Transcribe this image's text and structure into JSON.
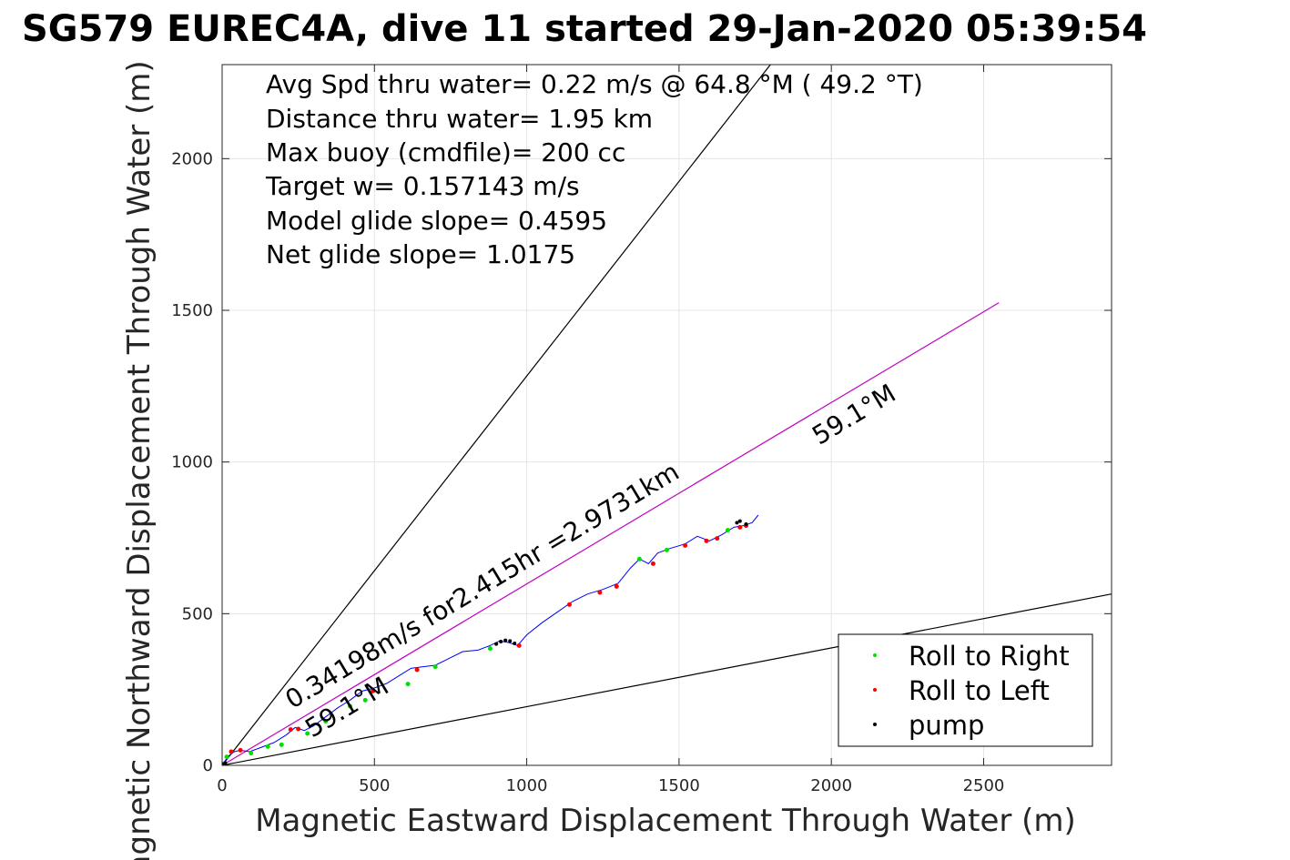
{
  "chart_data": {
    "type": "line",
    "title": "SG579 EUREC4A, dive 11 started 29-Jan-2020 05:39:54",
    "xlabel": "Magnetic Eastward Displacement Through Water (m)",
    "ylabel": "Magnetic Northward Displacement Through Water (m)",
    "xlim": [
      0,
      2920
    ],
    "ylim": [
      0,
      2310
    ],
    "x_ticks": [
      0,
      500,
      1000,
      1500,
      2000,
      2500
    ],
    "y_ticks": [
      0,
      500,
      1000,
      1500,
      2000
    ],
    "grid": true,
    "legend_position": "bottom-right",
    "stats": [
      "Avg Spd thru water=  0.22 m/s @  64.8 °M ( 49.2 °T)",
      "Distance thru water=  1.95 km",
      "Max buoy (cmdfile)= 200 cc",
      "Target w= 0.157143 m/s",
      "Model glide slope= 0.4595",
      "Net glide slope= 1.0175"
    ],
    "annotations": [
      {
        "text": "0.34198m/s for2.415hr =2.9731km",
        "x": 230,
        "y": 185,
        "angle_deg": 30.9
      },
      {
        "text": "59.1°M",
        "x": 295,
        "y": 90,
        "angle_deg": 30.9
      },
      {
        "text": "59.1°M",
        "x": 1960,
        "y": 1055,
        "angle_deg": 30.9
      }
    ],
    "reference_lines": [
      {
        "name": "upper-bound",
        "color": "#000000",
        "x": [
          0,
          1800
        ],
        "y": [
          0,
          2310
        ]
      },
      {
        "name": "lower-bound",
        "color": "#000000",
        "x": [
          0,
          2920
        ],
        "y": [
          0,
          565
        ]
      },
      {
        "name": "course-line",
        "color": "#c000c0",
        "x": [
          0,
          2550
        ],
        "y": [
          0,
          1525
        ]
      }
    ],
    "series": [
      {
        "name": "",
        "color": "#0000ff",
        "x": [
          0,
          20,
          40,
          60,
          90,
          130,
          170,
          210,
          240,
          270,
          300,
          340,
          380,
          420,
          460,
          500,
          540,
          580,
          620,
          660,
          700,
          740,
          790,
          840,
          880,
          910,
          940,
          970,
          1000,
          1050,
          1100,
          1150,
          1200,
          1250,
          1300,
          1340,
          1370,
          1400,
          1430,
          1470,
          1520,
          1560,
          1600,
          1640,
          1680,
          1710,
          1740,
          1760
        ],
        "y": [
          0,
          30,
          45,
          50,
          45,
          60,
          75,
          100,
          125,
          115,
          130,
          160,
          190,
          215,
          245,
          255,
          270,
          295,
          320,
          325,
          330,
          350,
          375,
          380,
          395,
          410,
          405,
          395,
          430,
          470,
          505,
          540,
          565,
          580,
          600,
          650,
          680,
          665,
          700,
          715,
          730,
          755,
          740,
          760,
          785,
          790,
          800,
          825
        ]
      },
      {
        "name": "Roll to Right",
        "color": "#00e000",
        "marker": "point",
        "x": [
          15,
          95,
          150,
          195,
          280,
          340,
          420,
          470,
          610,
          700,
          880,
          1370,
          1460,
          1660
        ],
        "y": [
          28,
          40,
          62,
          68,
          105,
          145,
          195,
          215,
          268,
          325,
          385,
          680,
          710,
          775
        ]
      },
      {
        "name": "Roll to Left",
        "color": "#ff0000",
        "marker": "point",
        "x": [
          30,
          60,
          225,
          250,
          495,
          640,
          975,
          1140,
          1240,
          1295,
          1415,
          1520,
          1590,
          1625,
          1700,
          1720
        ],
        "y": [
          45,
          50,
          118,
          120,
          245,
          315,
          395,
          530,
          570,
          590,
          665,
          725,
          740,
          748,
          785,
          790
        ]
      },
      {
        "name": "pump",
        "color": "#000000",
        "marker": "point",
        "x": [
          5,
          10,
          900,
          915,
          930,
          945,
          960,
          1690,
          1700,
          1720
        ],
        "y": [
          5,
          8,
          400,
          408,
          412,
          410,
          402,
          800,
          805,
          795
        ]
      }
    ]
  }
}
